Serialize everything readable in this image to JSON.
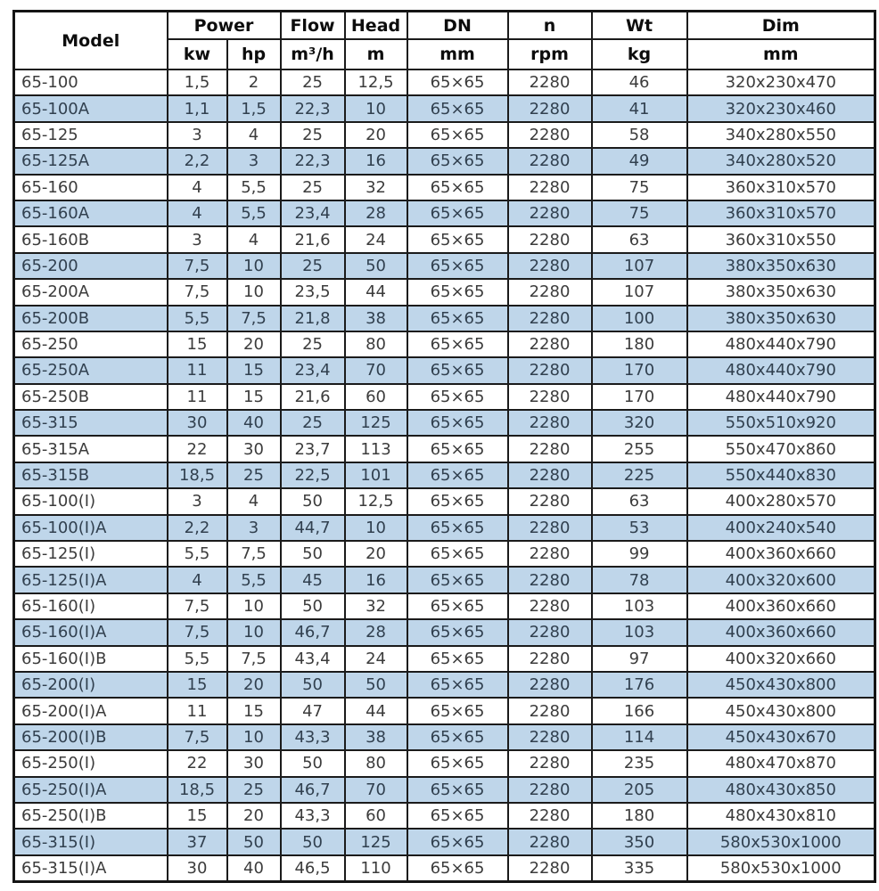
{
  "table": {
    "header": {
      "model": "Model",
      "groups": [
        {
          "label": "Power"
        },
        {
          "label": "Flow"
        },
        {
          "label": "Head"
        },
        {
          "label": "DN"
        },
        {
          "label": "n"
        },
        {
          "label": "Wt"
        },
        {
          "label": "Dim"
        }
      ],
      "units": [
        "kw",
        "hp",
        "m³/h",
        "m",
        "mm",
        "rpm",
        "kg",
        "mm"
      ]
    },
    "columns": [
      "model",
      "kw",
      "hp",
      "flow",
      "head",
      "dn",
      "n",
      "wt",
      "dim"
    ],
    "rows": [
      [
        "65-100",
        "1,5",
        "2",
        "25",
        "12,5",
        "65×65",
        "2280",
        "46",
        "320x230x470"
      ],
      [
        "65-100A",
        "1,1",
        "1,5",
        "22,3",
        "10",
        "65×65",
        "2280",
        "41",
        "320x230x460"
      ],
      [
        "65-125",
        "3",
        "4",
        "25",
        "20",
        "65×65",
        "2280",
        "58",
        "340x280x550"
      ],
      [
        "65-125A",
        "2,2",
        "3",
        "22,3",
        "16",
        "65×65",
        "2280",
        "49",
        "340x280x520"
      ],
      [
        "65-160",
        "4",
        "5,5",
        "25",
        "32",
        "65×65",
        "2280",
        "75",
        "360x310x570"
      ],
      [
        "65-160A",
        "4",
        "5,5",
        "23,4",
        "28",
        "65×65",
        "2280",
        "75",
        "360x310x570"
      ],
      [
        "65-160B",
        "3",
        "4",
        "21,6",
        "24",
        "65×65",
        "2280",
        "63",
        "360x310x550"
      ],
      [
        "65-200",
        "7,5",
        "10",
        "25",
        "50",
        "65×65",
        "2280",
        "107",
        "380x350x630"
      ],
      [
        "65-200A",
        "7,5",
        "10",
        "23,5",
        "44",
        "65×65",
        "2280",
        "107",
        "380x350x630"
      ],
      [
        "65-200B",
        "5,5",
        "7,5",
        "21,8",
        "38",
        "65×65",
        "2280",
        "100",
        "380x350x630"
      ],
      [
        "65-250",
        "15",
        "20",
        "25",
        "80",
        "65×65",
        "2280",
        "180",
        "480x440x790"
      ],
      [
        "65-250A",
        "11",
        "15",
        "23,4",
        "70",
        "65×65",
        "2280",
        "170",
        "480x440x790"
      ],
      [
        "65-250B",
        "11",
        "15",
        "21,6",
        "60",
        "65×65",
        "2280",
        "170",
        "480x440x790"
      ],
      [
        "65-315",
        "30",
        "40",
        "25",
        "125",
        "65×65",
        "2280",
        "320",
        "550x510x920"
      ],
      [
        "65-315A",
        "22",
        "30",
        "23,7",
        "113",
        "65×65",
        "2280",
        "255",
        "550x470x860"
      ],
      [
        "65-315B",
        "18,5",
        "25",
        "22,5",
        "101",
        "65×65",
        "2280",
        "225",
        "550x440x830"
      ],
      [
        "65-100(I)",
        "3",
        "4",
        "50",
        "12,5",
        "65×65",
        "2280",
        "63",
        "400x280x570"
      ],
      [
        "65-100(I)A",
        "2,2",
        "3",
        "44,7",
        "10",
        "65×65",
        "2280",
        "53",
        "400x240x540"
      ],
      [
        "65-125(I)",
        "5,5",
        "7,5",
        "50",
        "20",
        "65×65",
        "2280",
        "99",
        "400x360x660"
      ],
      [
        "65-125(I)A",
        "4",
        "5,5",
        "45",
        "16",
        "65×65",
        "2280",
        "78",
        "400x320x600"
      ],
      [
        "65-160(I)",
        "7,5",
        "10",
        "50",
        "32",
        "65×65",
        "2280",
        "103",
        "400x360x660"
      ],
      [
        "65-160(I)A",
        "7,5",
        "10",
        "46,7",
        "28",
        "65×65",
        "2280",
        "103",
        "400x360x660"
      ],
      [
        "65-160(I)B",
        "5,5",
        "7,5",
        "43,4",
        "24",
        "65×65",
        "2280",
        "97",
        "400x320x660"
      ],
      [
        "65-200(I)",
        "15",
        "20",
        "50",
        "50",
        "65×65",
        "2280",
        "176",
        "450x430x800"
      ],
      [
        "65-200(I)A",
        "11",
        "15",
        "47",
        "44",
        "65×65",
        "2280",
        "166",
        "450x430x800"
      ],
      [
        "65-200(I)B",
        "7,5",
        "10",
        "43,3",
        "38",
        "65×65",
        "2280",
        "114",
        "450x430x670"
      ],
      [
        "65-250(I)",
        "22",
        "30",
        "50",
        "80",
        "65×65",
        "2280",
        "235",
        "480x470x870"
      ],
      [
        "65-250(I)A",
        "18,5",
        "25",
        "46,7",
        "70",
        "65×65",
        "2280",
        "205",
        "480x430x850"
      ],
      [
        "65-250(I)B",
        "15",
        "20",
        "43,3",
        "60",
        "65×65",
        "2280",
        "180",
        "480x430x810"
      ],
      [
        "65-315(I)",
        "37",
        "50",
        "50",
        "125",
        "65×65",
        "2280",
        "350",
        "580x530x1000"
      ],
      [
        "65-315(I)A",
        "30",
        "40",
        "46,5",
        "110",
        "65×65",
        "2280",
        "335",
        "580x530x1000"
      ]
    ]
  },
  "colors": {
    "row_alternate_bg": "#bfd6ea",
    "border": "#1b1b1b",
    "text": "#3c3c3c",
    "text_alternate": "#31404f"
  }
}
